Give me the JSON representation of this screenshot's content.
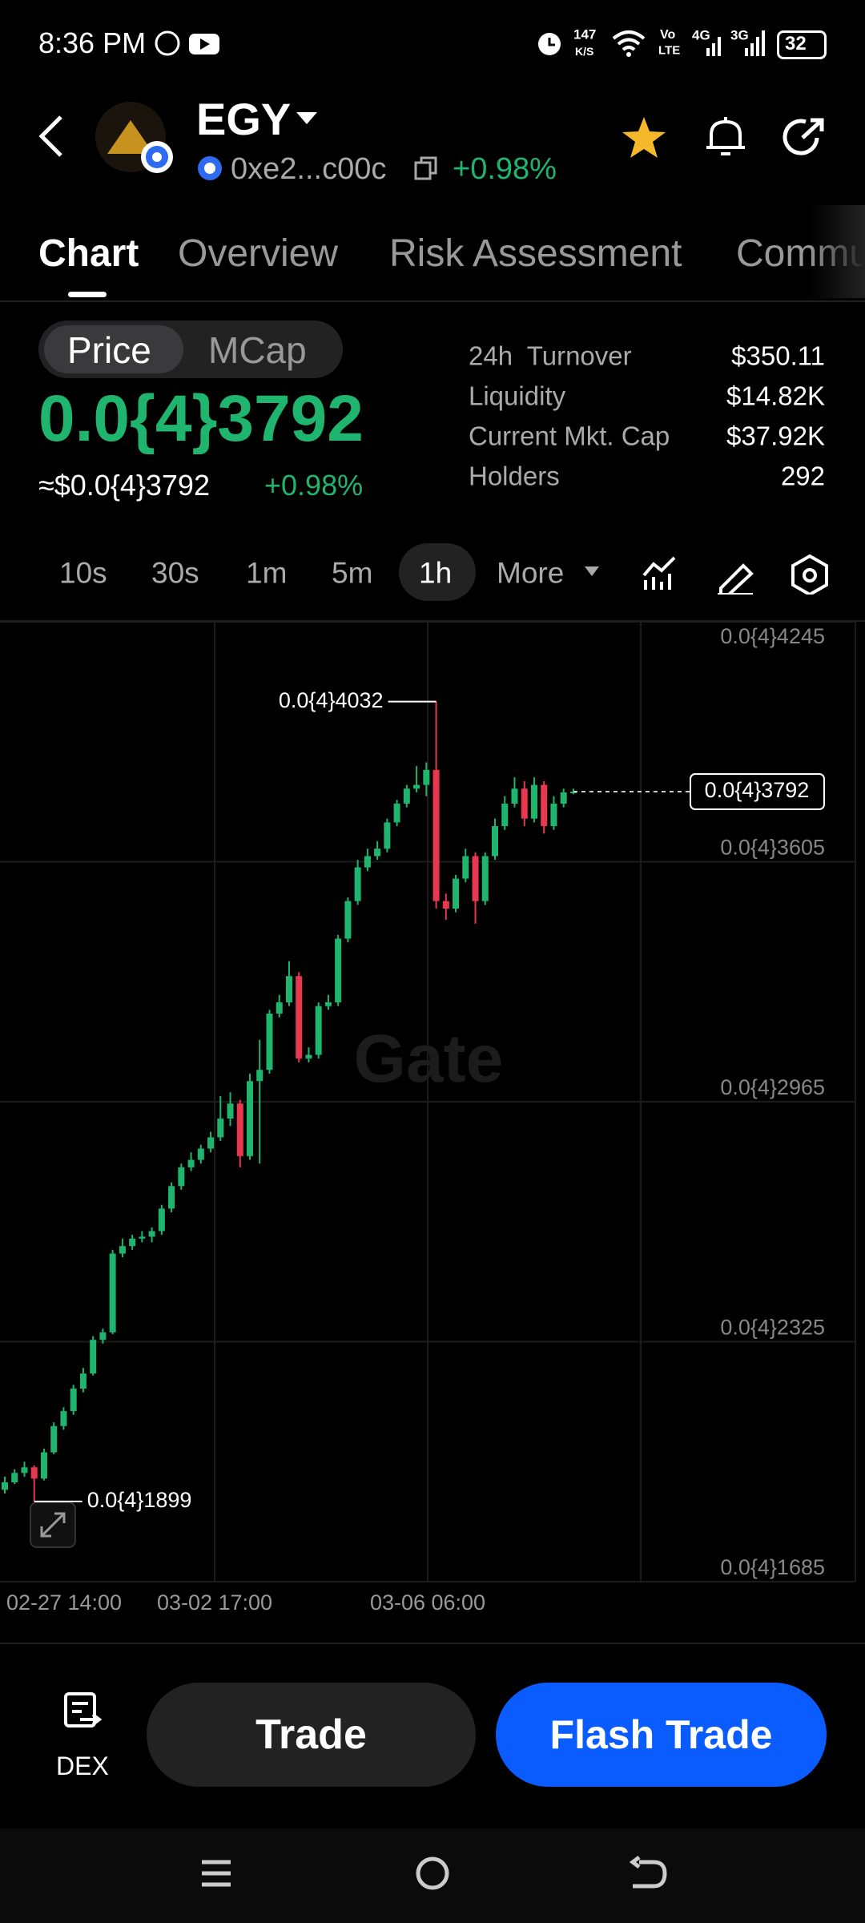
{
  "status_bar": {
    "time": "8:36 PM",
    "speed": "147",
    "speed_unit": "K/S",
    "volte": "Vo",
    "lte": "LTE",
    "sim1": "4G",
    "sim2": "3G",
    "battery": "32"
  },
  "header": {
    "symbol": "EGY",
    "address": "0xe2...c00c",
    "change": "+0.98%"
  },
  "tabs": [
    "Chart",
    "Overview",
    "Risk Assessment",
    "Community"
  ],
  "toggle": [
    "Price",
    "MCap"
  ],
  "price": {
    "value": "0.0{4}3792",
    "usd": "≈$0.0{4}3792",
    "change": "+0.98%"
  },
  "stats": [
    {
      "label": "24h  Turnover",
      "value": "$350.11"
    },
    {
      "label": "Liquidity",
      "value": "$14.82K"
    },
    {
      "label": "Current Mkt. Cap",
      "value": "$37.92K"
    },
    {
      "label": "Holders",
      "value": "292"
    }
  ],
  "intervals": [
    "10s",
    "30s",
    "1m",
    "5m",
    "1h",
    "More"
  ],
  "chart": {
    "type": "candlestick",
    "up_color": "#1fb56e",
    "down_color": "#e8384f",
    "grid": true,
    "ylim": [
      1.685e-05,
      4.245e-05
    ],
    "yticks": [
      {
        "value": 4.245e-05,
        "label": "0.0{4}4245"
      },
      {
        "value": 3.605e-05,
        "label": "0.0{4}3605"
      },
      {
        "value": 2.965e-05,
        "label": "0.0{4}2965"
      },
      {
        "value": 2.325e-05,
        "label": "0.0{4}2325"
      },
      {
        "value": 1.685e-05,
        "label": "0.0{4}1685"
      }
    ],
    "x_labels": [
      "02-27 14:00",
      "03-02 17:00",
      "03-06 06:00"
    ],
    "open": [
      1.93e-05,
      1.95e-05,
      1.975e-05,
      1.99e-05,
      1.96e-05,
      2.03e-05,
      2.1e-05,
      2.14e-05,
      2.2e-05,
      2.24e-05,
      2.33e-05,
      2.35e-05,
      2.56e-05,
      2.58e-05,
      2.6e-05,
      2.605e-05,
      2.62e-05,
      2.68e-05,
      2.74e-05,
      2.79e-05,
      2.81e-05,
      2.84e-05,
      2.87e-05,
      2.92e-05,
      2.96e-05,
      2.82e-05,
      3.02e-05,
      3.05e-05,
      3.2e-05,
      3.23e-05,
      3.3e-05,
      3.08e-05,
      3.09e-05,
      3.22e-05,
      3.23e-05,
      3.4e-05,
      3.5e-05,
      3.59e-05,
      3.62e-05,
      3.64e-05,
      3.71e-05,
      3.76e-05,
      3.8e-05,
      3.81e-05,
      3.85e-05,
      3.5e-05,
      3.48e-05,
      3.56e-05,
      3.62e-05,
      3.5e-05,
      3.62e-05,
      3.7e-05,
      3.76e-05,
      3.8e-05,
      3.72e-05,
      3.81e-05,
      3.7e-05,
      3.76e-05,
      3.79e-05
    ],
    "high": [
      1.965e-05,
      1.985e-05,
      2.005e-05,
      1.995e-05,
      2.04e-05,
      2.11e-05,
      2.15e-05,
      2.21e-05,
      2.255e-05,
      2.34e-05,
      2.36e-05,
      2.57e-05,
      2.6e-05,
      2.61e-05,
      2.62e-05,
      2.63e-05,
      2.69e-05,
      2.75e-05,
      2.8e-05,
      2.83e-05,
      2.85e-05,
      2.885e-05,
      2.98e-05,
      2.99e-05,
      2.97e-05,
      3.04e-05,
      3.13e-05,
      3.21e-05,
      3.25e-05,
      3.34e-05,
      3.31e-05,
      3.11e-05,
      3.23e-05,
      3.25e-05,
      3.41e-05,
      3.51e-05,
      3.61e-05,
      3.64e-05,
      3.66e-05,
      3.72e-05,
      3.77e-05,
      3.81e-05,
      3.86e-05,
      3.87e-05,
      4.032e-05,
      3.52e-05,
      3.57e-05,
      3.64e-05,
      3.63e-05,
      3.63e-05,
      3.72e-05,
      3.78e-05,
      3.83e-05,
      3.82e-05,
      3.83e-05,
      3.82e-05,
      3.78e-05,
      3.8e-05,
      3.8e-05
    ],
    "low": [
      1.92e-05,
      1.945e-05,
      1.965e-05,
      1.899e-05,
      1.955e-05,
      2.025e-05,
      2.09e-05,
      2.13e-05,
      2.19e-05,
      2.235e-05,
      2.32e-05,
      2.345e-05,
      2.55e-05,
      2.57e-05,
      2.59e-05,
      2.59e-05,
      2.61e-05,
      2.67e-05,
      2.73e-05,
      2.78e-05,
      2.8e-05,
      2.83e-05,
      2.86e-05,
      2.9e-05,
      2.79e-05,
      2.81e-05,
      2.8e-05,
      3.04e-05,
      3.19e-05,
      3.22e-05,
      3.07e-05,
      3.07e-05,
      3.08e-05,
      3.21e-05,
      3.22e-05,
      3.39e-05,
      3.49e-05,
      3.58e-05,
      3.61e-05,
      3.63e-05,
      3.7e-05,
      3.75e-05,
      3.79e-05,
      3.78e-05,
      3.48e-05,
      3.45e-05,
      3.47e-05,
      3.55e-05,
      3.44e-05,
      3.49e-05,
      3.61e-05,
      3.69e-05,
      3.75e-05,
      3.7e-05,
      3.71e-05,
      3.68e-05,
      3.69e-05,
      3.75e-05,
      3.785e-05
    ],
    "close": [
      1.95e-05,
      1.975e-05,
      1.99e-05,
      1.96e-05,
      2.03e-05,
      2.1e-05,
      2.14e-05,
      2.2e-05,
      2.24e-05,
      2.33e-05,
      2.35e-05,
      2.56e-05,
      2.58e-05,
      2.6e-05,
      2.605e-05,
      2.62e-05,
      2.68e-05,
      2.74e-05,
      2.79e-05,
      2.81e-05,
      2.84e-05,
      2.87e-05,
      2.92e-05,
      2.96e-05,
      2.82e-05,
      3.02e-05,
      3.05e-05,
      3.2e-05,
      3.23e-05,
      3.3e-05,
      3.08e-05,
      3.09e-05,
      3.22e-05,
      3.23e-05,
      3.4e-05,
      3.5e-05,
      3.59e-05,
      3.62e-05,
      3.64e-05,
      3.71e-05,
      3.76e-05,
      3.8e-05,
      3.81e-05,
      3.85e-05,
      3.5e-05,
      3.48e-05,
      3.56e-05,
      3.62e-05,
      3.5e-05,
      3.62e-05,
      3.7e-05,
      3.76e-05,
      3.8e-05,
      3.72e-05,
      3.81e-05,
      3.7e-05,
      3.76e-05,
      3.79e-05,
      3.792e-05
    ],
    "high_label": {
      "value": 4.032e-05,
      "label": "0.0{4}4032"
    },
    "low_label": {
      "value": 1.899e-05,
      "label": "0.0{4}1899"
    },
    "last": {
      "value": 3.792e-05,
      "label": "0.0{4}3792"
    },
    "watermark": "Gate"
  },
  "footer": {
    "dex": "DEX",
    "trade": "Trade",
    "flash_trade": "Flash Trade"
  }
}
